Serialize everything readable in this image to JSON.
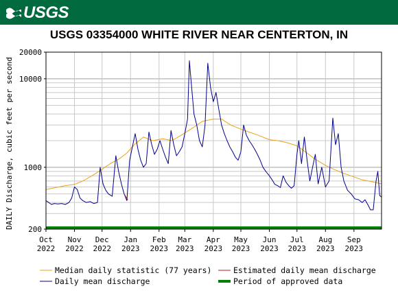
{
  "header": {
    "logo_text": "USGS",
    "banner_color": "#00693e"
  },
  "chart_data": {
    "type": "line",
    "title": "USGS 03354000 WHITE RIVER NEAR CENTERTON, IN",
    "ylabel": "DAILY Discharge, cubic feet per second",
    "yscale": "log",
    "ylim": [
      200,
      20000
    ],
    "y_ticks": [
      "200",
      "1000",
      "10000",
      "20000"
    ],
    "xlim": [
      "2022-10-01",
      "2023-10-01"
    ],
    "x_ticks": [
      {
        "date": "2022-10-01",
        "month": "Oct",
        "year": "2022"
      },
      {
        "date": "2022-11-01",
        "month": "Nov",
        "year": "2022"
      },
      {
        "date": "2022-12-01",
        "month": "Dec",
        "year": "2022"
      },
      {
        "date": "2023-01-01",
        "month": "Jan",
        "year": "2023"
      },
      {
        "date": "2023-02-01",
        "month": "Feb",
        "year": "2023"
      },
      {
        "date": "2023-03-01",
        "month": "Mar",
        "year": "2023"
      },
      {
        "date": "2023-04-01",
        "month": "Apr",
        "year": "2023"
      },
      {
        "date": "2023-05-01",
        "month": "May",
        "year": "2023"
      },
      {
        "date": "2023-06-01",
        "month": "Jun",
        "year": "2023"
      },
      {
        "date": "2023-07-01",
        "month": "Jul",
        "year": "2023"
      },
      {
        "date": "2023-08-01",
        "month": "Aug",
        "year": "2023"
      },
      {
        "date": "2023-09-01",
        "month": "Sep",
        "year": "2023"
      }
    ],
    "grid": true,
    "series": [
      {
        "name": "Median daily statistic (77 years)",
        "color": "#e8a317",
        "points": [
          [
            "2022-10-01",
            560
          ],
          [
            "2022-10-08",
            580
          ],
          [
            "2022-10-15",
            600
          ],
          [
            "2022-10-22",
            620
          ],
          [
            "2022-11-01",
            640
          ],
          [
            "2022-11-10",
            700
          ],
          [
            "2022-11-20",
            800
          ],
          [
            "2022-12-01",
            950
          ],
          [
            "2022-12-10",
            1100
          ],
          [
            "2022-12-20",
            1250
          ],
          [
            "2022-12-28",
            1450
          ],
          [
            "2023-01-05",
            1800
          ],
          [
            "2023-01-15",
            2200
          ],
          [
            "2023-01-25",
            2000
          ],
          [
            "2023-02-05",
            2100
          ],
          [
            "2023-02-15",
            2000
          ],
          [
            "2023-02-25",
            2300
          ],
          [
            "2023-03-10",
            2800
          ],
          [
            "2023-03-20",
            3300
          ],
          [
            "2023-04-01",
            3500
          ],
          [
            "2023-04-10",
            3500
          ],
          [
            "2023-04-20",
            3000
          ],
          [
            "2023-05-01",
            2700
          ],
          [
            "2023-05-10",
            2500
          ],
          [
            "2023-05-20",
            2300
          ],
          [
            "2023-06-01",
            2050
          ],
          [
            "2023-06-10",
            2000
          ],
          [
            "2023-06-20",
            1900
          ],
          [
            "2023-07-01",
            1750
          ],
          [
            "2023-07-10",
            1500
          ],
          [
            "2023-07-20",
            1250
          ],
          [
            "2023-08-01",
            1050
          ],
          [
            "2023-08-10",
            950
          ],
          [
            "2023-08-20",
            860
          ],
          [
            "2023-09-01",
            780
          ],
          [
            "2023-09-10",
            720
          ],
          [
            "2023-09-20",
            690
          ],
          [
            "2023-10-01",
            650
          ]
        ]
      },
      {
        "name": "Daily mean discharge",
        "color": "#00008b",
        "points": [
          [
            "2022-10-01",
            420
          ],
          [
            "2022-10-04",
            400
          ],
          [
            "2022-10-07",
            380
          ],
          [
            "2022-10-10",
            390
          ],
          [
            "2022-10-14",
            385
          ],
          [
            "2022-10-18",
            390
          ],
          [
            "2022-10-22",
            380
          ],
          [
            "2022-10-26",
            400
          ],
          [
            "2022-10-29",
            450
          ],
          [
            "2022-11-01",
            600
          ],
          [
            "2022-11-04",
            560
          ],
          [
            "2022-11-07",
            450
          ],
          [
            "2022-11-10",
            420
          ],
          [
            "2022-11-14",
            400
          ],
          [
            "2022-11-18",
            410
          ],
          [
            "2022-11-22",
            390
          ],
          [
            "2022-11-26",
            400
          ],
          [
            "2022-11-29",
            1000
          ],
          [
            "2022-12-02",
            650
          ],
          [
            "2022-12-05",
            550
          ],
          [
            "2022-12-08",
            500
          ],
          [
            "2022-12-12",
            470
          ],
          [
            "2022-12-16",
            1350
          ],
          [
            "2022-12-19",
            900
          ],
          [
            "2022-12-22",
            650
          ],
          [
            "2022-12-25",
            500
          ],
          [
            "2022-12-28",
            420
          ],
          [
            "2022-12-31",
            1200
          ],
          [
            "2023-01-03",
            1700
          ],
          [
            "2023-01-06",
            2400
          ],
          [
            "2023-01-09",
            1600
          ],
          [
            "2023-01-12",
            1200
          ],
          [
            "2023-01-15",
            1000
          ],
          [
            "2023-01-18",
            1100
          ],
          [
            "2023-01-21",
            2500
          ],
          [
            "2023-01-24",
            1800
          ],
          [
            "2023-01-27",
            1400
          ],
          [
            "2023-01-30",
            1600
          ],
          [
            "2023-02-02",
            2000
          ],
          [
            "2023-02-05",
            1600
          ],
          [
            "2023-02-08",
            1300
          ],
          [
            "2023-02-11",
            1100
          ],
          [
            "2023-02-14",
            2600
          ],
          [
            "2023-02-17",
            1800
          ],
          [
            "2023-02-20",
            1350
          ],
          [
            "2023-02-23",
            1500
          ],
          [
            "2023-02-26",
            1700
          ],
          [
            "2023-03-01",
            2400
          ],
          [
            "2023-03-04",
            3500
          ],
          [
            "2023-03-06",
            16000
          ],
          [
            "2023-03-08",
            9000
          ],
          [
            "2023-03-11",
            4000
          ],
          [
            "2023-03-14",
            3000
          ],
          [
            "2023-03-17",
            2000
          ],
          [
            "2023-03-20",
            1700
          ],
          [
            "2023-03-23",
            3000
          ],
          [
            "2023-03-26",
            15000
          ],
          [
            "2023-03-29",
            8000
          ],
          [
            "2023-04-01",
            5500
          ],
          [
            "2023-04-04",
            7000
          ],
          [
            "2023-04-07",
            4500
          ],
          [
            "2023-04-10",
            3000
          ],
          [
            "2023-04-13",
            2400
          ],
          [
            "2023-04-16",
            2000
          ],
          [
            "2023-04-19",
            1700
          ],
          [
            "2023-04-22",
            1500
          ],
          [
            "2023-04-25",
            1300
          ],
          [
            "2023-04-28",
            1200
          ],
          [
            "2023-05-01",
            1500
          ],
          [
            "2023-05-04",
            3000
          ],
          [
            "2023-05-07",
            2300
          ],
          [
            "2023-05-10",
            2000
          ],
          [
            "2023-05-13",
            1800
          ],
          [
            "2023-05-16",
            1600
          ],
          [
            "2023-05-19",
            1400
          ],
          [
            "2023-05-22",
            1200
          ],
          [
            "2023-05-25",
            1000
          ],
          [
            "2023-05-28",
            900
          ],
          [
            "2023-06-01",
            800
          ],
          [
            "2023-06-04",
            720
          ],
          [
            "2023-06-07",
            640
          ],
          [
            "2023-06-10",
            620
          ],
          [
            "2023-06-13",
            590
          ],
          [
            "2023-06-16",
            800
          ],
          [
            "2023-06-19",
            680
          ],
          [
            "2023-06-22",
            620
          ],
          [
            "2023-06-25",
            580
          ],
          [
            "2023-06-28",
            620
          ],
          [
            "2023-07-01",
            1400
          ],
          [
            "2023-07-03",
            2000
          ],
          [
            "2023-07-06",
            1100
          ],
          [
            "2023-07-09",
            2200
          ],
          [
            "2023-07-12",
            1200
          ],
          [
            "2023-07-15",
            700
          ],
          [
            "2023-07-18",
            1000
          ],
          [
            "2023-07-21",
            1400
          ],
          [
            "2023-07-24",
            650
          ],
          [
            "2023-07-28",
            1000
          ],
          [
            "2023-08-01",
            600
          ],
          [
            "2023-08-05",
            700
          ],
          [
            "2023-08-09",
            3600
          ],
          [
            "2023-08-12",
            1800
          ],
          [
            "2023-08-15",
            2400
          ],
          [
            "2023-08-18",
            1000
          ],
          [
            "2023-08-21",
            700
          ],
          [
            "2023-08-25",
            550
          ],
          [
            "2023-08-29",
            500
          ],
          [
            "2023-09-02",
            440
          ],
          [
            "2023-09-06",
            430
          ],
          [
            "2023-09-10",
            400
          ],
          [
            "2023-09-13",
            430
          ],
          [
            "2023-09-16",
            380
          ],
          [
            "2023-09-19",
            330
          ],
          [
            "2023-09-22",
            330
          ],
          [
            "2023-09-25",
            700
          ],
          [
            "2023-09-27",
            900
          ],
          [
            "2023-09-29",
            480
          ],
          [
            "2023-10-01",
            460
          ]
        ]
      },
      {
        "name": "Estimated daily mean discharge",
        "color": "#b22222",
        "points": [
          [
            "2022-12-25",
            500
          ],
          [
            "2022-12-27",
            460
          ],
          [
            "2022-12-29",
            430
          ]
        ]
      },
      {
        "name": "Period of approved data",
        "color": "#008000",
        "points": [
          [
            "2022-10-01",
            200
          ],
          [
            "2023-10-01",
            200
          ]
        ]
      }
    ],
    "legend": {
      "placement": "bottom",
      "entries": [
        {
          "label": "Median daily statistic (77 years)",
          "color": "#e8a317"
        },
        {
          "label": "Estimated daily mean discharge",
          "color": "#b22222"
        },
        {
          "label": "Daily mean discharge",
          "color": "#00008b"
        },
        {
          "label": "Period of approved data",
          "color": "#008000"
        }
      ]
    }
  }
}
